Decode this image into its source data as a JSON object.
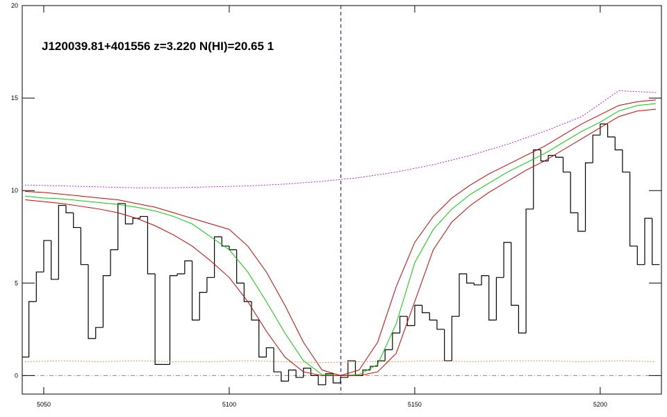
{
  "chart_data": {
    "type": "line",
    "title": "J120039.81+401556 z=3.220 N(HI)=20.65 1",
    "xlim": [
      5044.2,
      5216.5
    ],
    "ylim": [
      -1,
      20
    ],
    "xticks": [
      5050,
      5100,
      5150,
      5200
    ],
    "yticks": [
      0,
      5,
      10,
      15,
      20
    ],
    "hline": 0,
    "vline": 5130.1,
    "series": [
      {
        "style": "step",
        "color": "#000000",
        "x": [
          5045,
          5047,
          5049,
          5051,
          5053,
          5055,
          5057,
          5059,
          5061,
          5063,
          5065,
          5067,
          5069,
          5071,
          5073,
          5075,
          5077,
          5079,
          5081,
          5083,
          5085,
          5087,
          5089,
          5091,
          5093,
          5095,
          5097,
          5099,
          5101,
          5103,
          5105,
          5107,
          5109,
          5111,
          5113,
          5115,
          5117,
          5119,
          5121,
          5123,
          5125,
          5127,
          5129,
          5131,
          5133,
          5135,
          5137,
          5139,
          5141,
          5143,
          5145,
          5147,
          5149,
          5151,
          5153,
          5155,
          5157,
          5159,
          5161,
          5163,
          5165,
          5167,
          5169,
          5171,
          5173,
          5175,
          5177,
          5179,
          5181,
          5183,
          5185,
          5187,
          5189,
          5191,
          5193,
          5195,
          5197,
          5199,
          5201,
          5203,
          5205,
          5207,
          5209,
          5211,
          5213,
          5215
        ],
        "values": [
          1.0,
          4.0,
          5.6,
          7.3,
          5.2,
          9.2,
          8.8,
          8.0,
          6.0,
          2.0,
          2.6,
          5.4,
          6.8,
          9.3,
          8.2,
          8.5,
          8.6,
          5.5,
          0.6,
          0.6,
          5.4,
          5.5,
          6.2,
          3.0,
          4.5,
          5.3,
          7.5,
          7.0,
          6.8,
          5.0,
          4.0,
          3.0,
          1.0,
          1.5,
          0.2,
          -0.3,
          0.3,
          -0.1,
          0.4,
          0.0,
          -0.5,
          0.1,
          -0.4,
          -0.1,
          0.8,
          0.0,
          0.3,
          0.5,
          0.8,
          1.4,
          2.3,
          3.2,
          2.7,
          3.8,
          3.4,
          3.0,
          2.5,
          0.8,
          3.2,
          5.5,
          5.0,
          4.9,
          5.4,
          3.0,
          5.3,
          7.2,
          3.8,
          2.3,
          9.0,
          12.2,
          11.6,
          11.9,
          11.8,
          11.0,
          8.8,
          7.8,
          11.5,
          13.0,
          13.6,
          12.9,
          12.2,
          11.0,
          7.0,
          6.0,
          8.5,
          6.0
        ]
      },
      {
        "style": "solid",
        "color": "#00d000",
        "x": [
          5045,
          5050,
          5055,
          5060,
          5065,
          5070,
          5075,
          5080,
          5085,
          5090,
          5095,
          5100,
          5105,
          5110,
          5115,
          5120,
          5125,
          5130,
          5135,
          5140,
          5145,
          5150,
          5155,
          5160,
          5165,
          5170,
          5175,
          5180,
          5185,
          5190,
          5195,
          5200,
          5205,
          5210,
          5215
        ],
        "values": [
          9.7,
          9.6,
          9.55,
          9.45,
          9.35,
          9.25,
          9.1,
          8.9,
          8.6,
          8.2,
          7.5,
          6.8,
          5.6,
          4.0,
          2.3,
          0.8,
          0.05,
          0,
          0.05,
          0.6,
          2.8,
          6.1,
          7.9,
          9.0,
          9.8,
          10.4,
          11.0,
          11.5,
          12.0,
          12.6,
          13.2,
          13.7,
          14.3,
          14.6,
          14.7
        ]
      },
      {
        "style": "solid",
        "color": "#d00000",
        "x": [
          5045,
          5050,
          5055,
          5060,
          5065,
          5070,
          5075,
          5080,
          5085,
          5090,
          5095,
          5100,
          5105,
          5110,
          5115,
          5120,
          5125,
          5130,
          5135,
          5140,
          5145,
          5150,
          5155,
          5160,
          5165,
          5170,
          5175,
          5180,
          5185,
          5190,
          5195,
          5200,
          5205,
          5210,
          5215
        ],
        "values": [
          9.95,
          9.9,
          9.8,
          9.7,
          9.6,
          9.5,
          9.3,
          9.1,
          8.8,
          8.5,
          8.2,
          7.9,
          7.0,
          5.6,
          3.8,
          1.8,
          0.3,
          0,
          0.3,
          1.8,
          4.8,
          7.2,
          8.6,
          9.6,
          10.3,
          10.9,
          11.4,
          11.9,
          12.4,
          13.0,
          13.6,
          14.1,
          14.6,
          14.8,
          14.9
        ]
      },
      {
        "style": "solid",
        "color": "#d00000",
        "x": [
          5045,
          5050,
          5055,
          5060,
          5065,
          5070,
          5075,
          5080,
          5085,
          5090,
          5095,
          5100,
          5105,
          5110,
          5115,
          5120,
          5125,
          5130,
          5135,
          5140,
          5145,
          5150,
          5155,
          5160,
          5165,
          5170,
          5175,
          5180,
          5185,
          5190,
          5195,
          5200,
          5205,
          5210,
          5215
        ],
        "values": [
          9.5,
          9.4,
          9.3,
          9.15,
          9.0,
          8.8,
          8.5,
          8.1,
          7.6,
          7.0,
          6.2,
          5.3,
          4.0,
          2.4,
          1.0,
          0.2,
          0,
          0,
          0,
          0.2,
          1.2,
          4.0,
          6.8,
          8.3,
          9.2,
          9.9,
          10.5,
          11.1,
          11.6,
          12.2,
          12.8,
          13.4,
          14.0,
          14.3,
          14.4
        ]
      },
      {
        "style": "dotted",
        "color": "#c000ff",
        "x": [
          5045,
          5055,
          5065,
          5075,
          5085,
          5095,
          5105,
          5115,
          5125,
          5135,
          5145,
          5155,
          5165,
          5175,
          5185,
          5195,
          5205,
          5215
        ],
        "values": [
          10.3,
          10.25,
          10.2,
          10.15,
          10.15,
          10.2,
          10.25,
          10.35,
          10.5,
          10.7,
          11.0,
          11.4,
          11.9,
          12.5,
          13.2,
          14.0,
          15.4,
          15.3
        ]
      },
      {
        "style": "dotted",
        "color": "#e08020",
        "x": [
          5045,
          5055,
          5065,
          5075,
          5085,
          5095,
          5105,
          5115,
          5125,
          5135,
          5145,
          5155,
          5165,
          5175,
          5185,
          5195,
          5205,
          5215
        ],
        "values": [
          0.75,
          0.8,
          0.75,
          0.8,
          0.75,
          0.75,
          0.8,
          0.75,
          0.7,
          0.75,
          0.75,
          0.8,
          0.75,
          0.8,
          0.8,
          0.75,
          0.8,
          0.75
        ]
      }
    ]
  }
}
